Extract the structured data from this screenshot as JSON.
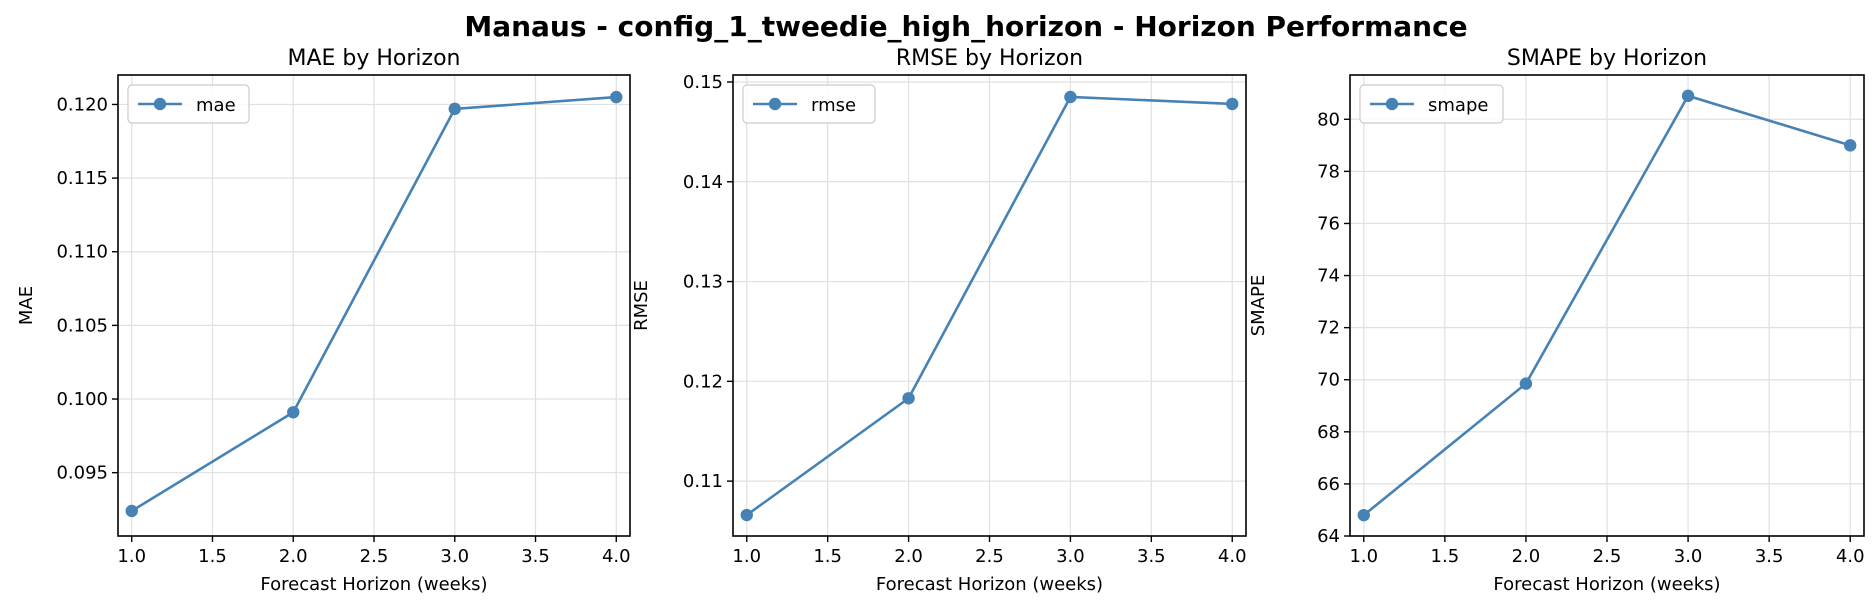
{
  "figure": {
    "suptitle": "Manaus - config_1_tweedie_high_horizon - Horizon Performance"
  },
  "colors": {
    "series": "#4682b4"
  },
  "chart_data": [
    {
      "type": "line",
      "title": "MAE by Horizon",
      "xlabel": "Forecast Horizon (weeks)",
      "ylabel": "MAE",
      "x": [
        1.0,
        2.0,
        3.0,
        4.0
      ],
      "series": [
        {
          "name": "mae",
          "values": [
            0.0924,
            0.0991,
            0.1197,
            0.1205
          ]
        }
      ],
      "xlim": [
        0.915,
        4.085
      ],
      "ylim": [
        0.0907,
        0.122
      ],
      "xticks": [
        "1.0",
        "1.5",
        "2.0",
        "2.5",
        "3.0",
        "3.5",
        "4.0"
      ],
      "yticks": [
        "0.095",
        "0.100",
        "0.105",
        "0.110",
        "0.115",
        "0.120"
      ],
      "grid": true,
      "legend": "upper-left"
    },
    {
      "type": "line",
      "title": "RMSE by Horizon",
      "xlabel": "Forecast Horizon (weeks)",
      "ylabel": "RMSE",
      "x": [
        1.0,
        2.0,
        3.0,
        4.0
      ],
      "series": [
        {
          "name": "rmse",
          "values": [
            0.1066,
            0.1183,
            0.1485,
            0.1478
          ]
        }
      ],
      "xlim": [
        0.915,
        4.085
      ],
      "ylim": [
        0.1045,
        0.1507
      ],
      "xticks": [
        "1.0",
        "1.5",
        "2.0",
        "2.5",
        "3.0",
        "3.5",
        "4.0"
      ],
      "yticks": [
        "0.11",
        "0.12",
        "0.13",
        "0.14",
        "0.15"
      ],
      "grid": true,
      "legend": "upper-left"
    },
    {
      "type": "line",
      "title": "SMAPE by Horizon",
      "xlabel": "Forecast Horizon (weeks)",
      "ylabel": "SMAPE",
      "x": [
        1.0,
        2.0,
        3.0,
        4.0
      ],
      "series": [
        {
          "name": "smape",
          "values": [
            64.8,
            69.85,
            80.9,
            79.0
          ]
        }
      ],
      "xlim": [
        0.915,
        4.085
      ],
      "ylim": [
        64.0,
        81.7
      ],
      "xticks": [
        "1.0",
        "1.5",
        "2.0",
        "2.5",
        "3.0",
        "3.5",
        "4.0"
      ],
      "yticks": [
        "64",
        "66",
        "68",
        "70",
        "72",
        "74",
        "76",
        "78",
        "80"
      ],
      "grid": true,
      "legend": "upper-left"
    }
  ]
}
